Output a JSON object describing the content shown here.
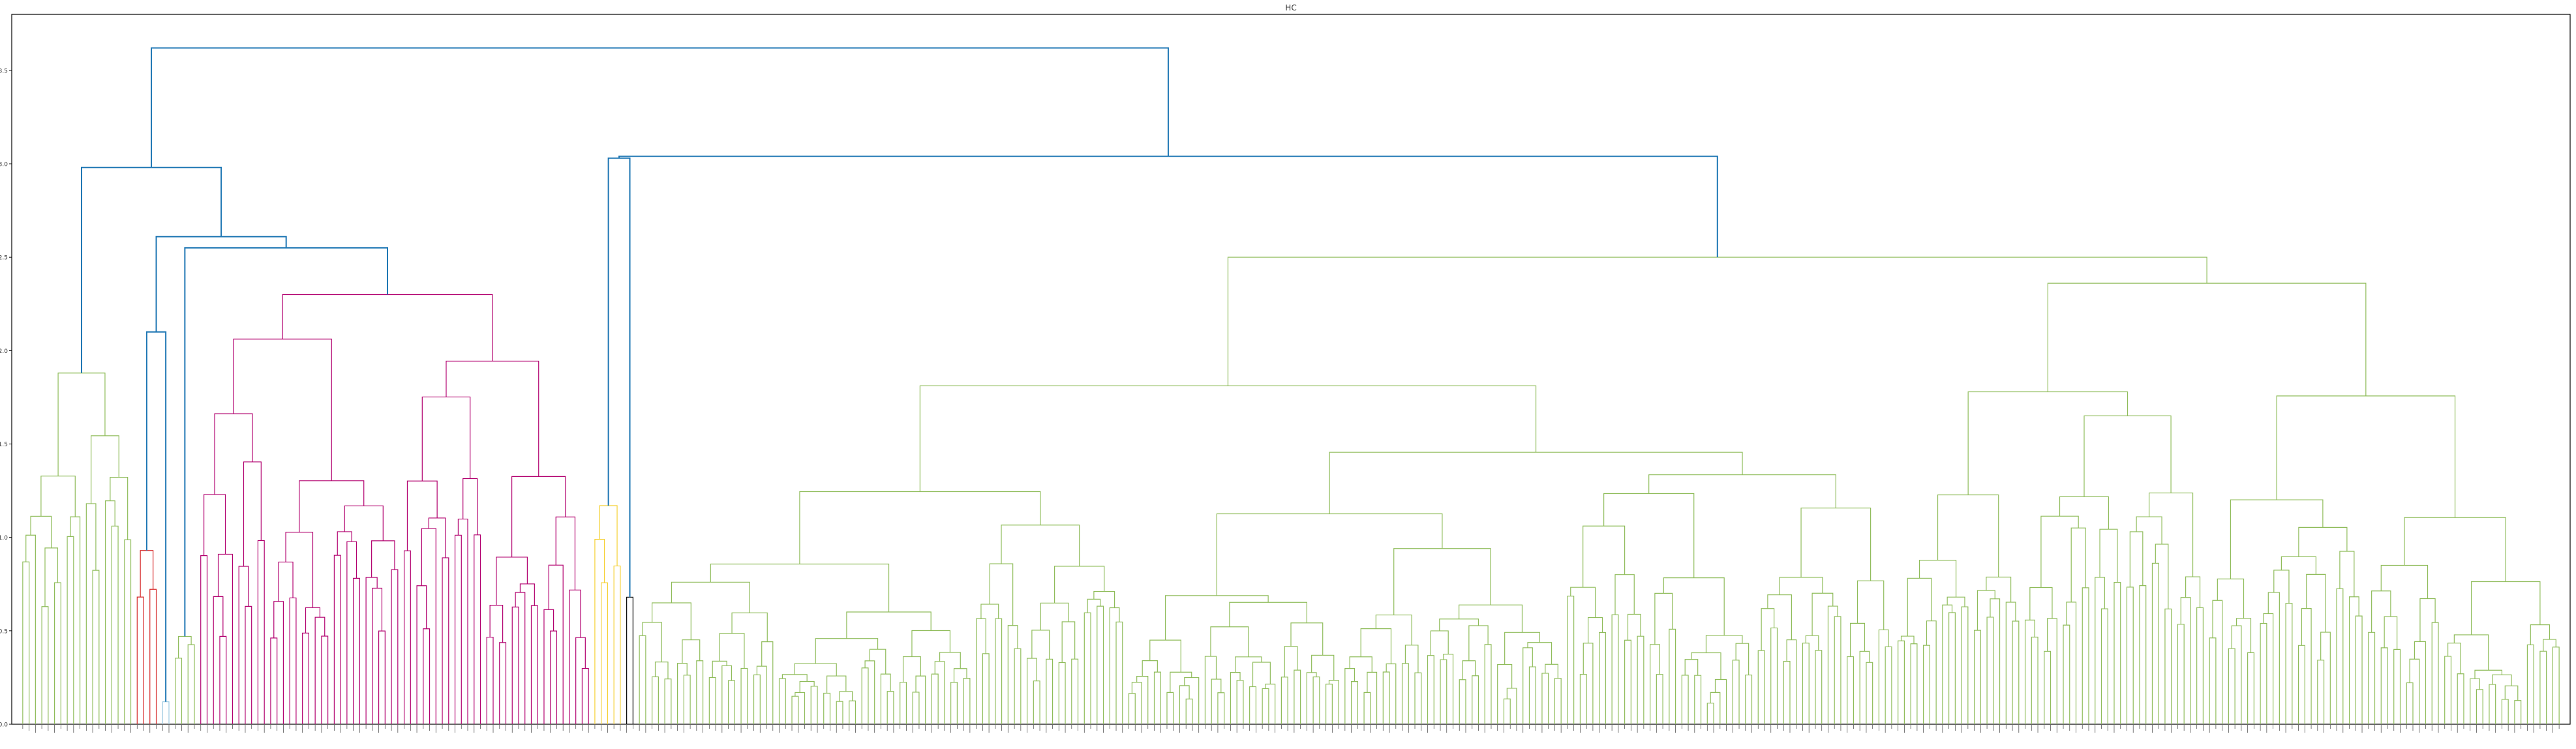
{
  "chart_data": {
    "type": "dendrogram",
    "title": "HC",
    "xlabel": "",
    "ylabel": "",
    "ylim": [
      0,
      3.8
    ],
    "y_ticks": [
      0.0,
      0.5,
      1.0,
      1.5,
      2.0,
      2.5,
      3.0,
      3.5
    ],
    "y_tick_labels": [
      "0.0",
      "0.5",
      "1.0",
      "1.5",
      "2.0",
      "2.5",
      "3.0",
      "3.5"
    ],
    "grid": false,
    "leaf_count": 400,
    "above_threshold_color": "#1f77b4",
    "root_height": 3.62,
    "major_merges": [
      {
        "name": "root",
        "height": 3.62,
        "color": "#1f77b4"
      },
      {
        "name": "left-group",
        "height": 2.98,
        "color": "#1f77b4"
      },
      {
        "name": "left-inner-1",
        "height": 2.61,
        "color": "#1f77b4"
      },
      {
        "name": "left-inner-2",
        "height": 2.55,
        "color": "#1f77b4"
      },
      {
        "name": "right-group",
        "height": 3.03,
        "color": "#1f77b4"
      },
      {
        "name": "right-inner-1",
        "height": 3.04,
        "color": "#1f77b4"
      },
      {
        "name": "right-inner-2",
        "height": 2.98,
        "color": "#1f77b4"
      }
    ],
    "clusters": [
      {
        "color": "#8fbc5a",
        "leaves": 18,
        "max_height": 1.88
      },
      {
        "color": "#d62728",
        "leaves": 4,
        "max_height": 0.93
      },
      {
        "color": "#9ecae1",
        "leaves": 2,
        "max_height": 0.12
      },
      {
        "color": "#8fbc5a",
        "leaves": 4,
        "max_height": 0.47
      },
      {
        "color": "#b2006f",
        "leaves": 62,
        "max_height": 2.3
      },
      {
        "color": "#f5d033",
        "leaves": 5,
        "max_height": 1.17
      },
      {
        "color": "#000000",
        "leaves": 2,
        "max_height": 0.68
      },
      {
        "color": "#8fbc5a",
        "leaves": 303,
        "max_height": 2.5
      }
    ]
  }
}
